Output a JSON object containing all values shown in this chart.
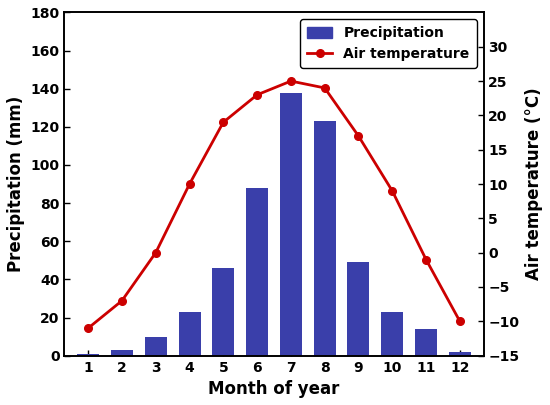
{
  "months": [
    1,
    2,
    3,
    4,
    5,
    6,
    7,
    8,
    9,
    10,
    11,
    12
  ],
  "precipitation": [
    1,
    3,
    10,
    23,
    46,
    88,
    138,
    123,
    49,
    23,
    14,
    2
  ],
  "air_temperature": [
    -11,
    -7,
    0,
    10,
    19,
    23,
    25,
    24,
    17,
    9,
    -1,
    -10
  ],
  "bar_color": "#3a3faa",
  "line_color": "#cc0000",
  "xlabel": "Month of year",
  "ylabel_left": "Precipitation (mm)",
  "ylabel_right": "Air temperature (°C)",
  "legend_precip": "Precipitation",
  "legend_temp": "Air temperature",
  "ylim_left": [
    0,
    180
  ],
  "ylim_right": [
    -15,
    35
  ],
  "yticks_left": [
    0,
    20,
    40,
    60,
    80,
    100,
    120,
    140,
    160,
    180
  ],
  "yticks_right": [
    -15,
    -10,
    -5,
    0,
    5,
    10,
    15,
    20,
    25,
    30
  ],
  "axis_fontsize": 12,
  "tick_fontsize": 10,
  "legend_fontsize": 10,
  "bar_width": 0.65
}
